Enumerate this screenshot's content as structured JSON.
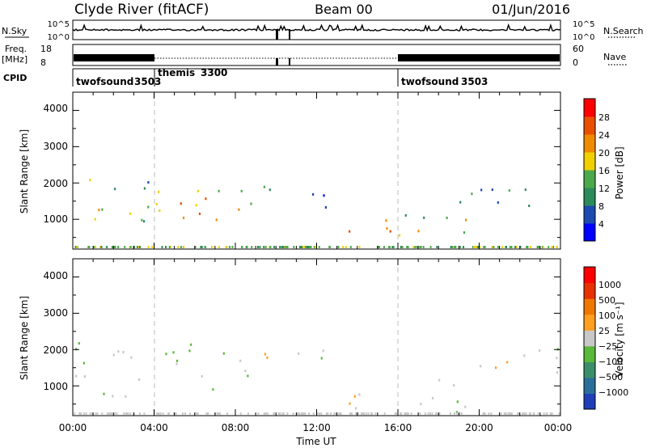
{
  "header": {
    "station": "Clyde River (fitACF)",
    "beam": "Beam 00",
    "date": "01/Jun/2016"
  },
  "noise_panel": {
    "left_label": "N.Sky",
    "right_label": "N.Search",
    "left_ticks": [
      "10^5",
      "10^0"
    ],
    "right_ticks": [
      "10^5",
      "10^0"
    ]
  },
  "freq_panel": {
    "left_label": "Freq.",
    "left_unit": "[MHz]",
    "right_label": "Nave",
    "left_ticks": [
      "18",
      "8"
    ],
    "right_ticks": [
      "60",
      "0"
    ]
  },
  "cpid_panel": {
    "label": "CPID",
    "segments": [
      {
        "name": "twofsound",
        "id": "3503",
        "start_h": 0,
        "end_h": 4
      },
      {
        "name": "themis",
        "id": "3300",
        "start_h": 4,
        "end_h": 16
      },
      {
        "name": "twofsound",
        "id": "3503",
        "start_h": 16,
        "end_h": 24
      }
    ]
  },
  "x_axis": {
    "label": "Time UT",
    "ticks": [
      "00:00",
      "04:00",
      "08:00",
      "12:00",
      "16:00",
      "20:00",
      "00:00"
    ]
  },
  "power_panel": {
    "ylabel": "Slant Range [km]",
    "yticks": [
      "4000",
      "3000",
      "2000",
      "1000"
    ],
    "colorbar_label": "Power [dB]",
    "colorbar_ticks": [
      "28",
      "24",
      "20",
      "16",
      "12",
      "8",
      "4"
    ],
    "colors": [
      "#0000ff",
      "#1c4ab0",
      "#2d8a5a",
      "#4ca94a",
      "#f0d000",
      "#f08a00",
      "#e85000",
      "#ff0000"
    ]
  },
  "velocity_panel": {
    "ylabel": "Slant Range [km]",
    "yticks": [
      "4000",
      "3000",
      "2000",
      "1000"
    ],
    "colorbar_label": "Velocity [m s⁻¹]",
    "colorbar_ticks": [
      "1000",
      "500",
      "100",
      "25",
      "−25",
      "−100",
      "−500",
      "−1000"
    ],
    "colors": [
      "#1f3fb8",
      "#2a6f9a",
      "#3a8f6a",
      "#5ab83a",
      "#c8c8c8",
      "#ff9f1f",
      "#f07800",
      "#e83000",
      "#ff0000"
    ]
  },
  "chart_data": {
    "type": "heatmap",
    "x_range_hours": [
      0,
      24
    ],
    "y_range_km": [
      180,
      4500
    ],
    "power_dB_range": [
      0,
      32
    ],
    "velocity_range_m_s": [
      -1000,
      1000
    ],
    "scatter_regions": [
      {
        "t": [
          0.1,
          4.2
        ],
        "r": [
          700,
          2300
        ],
        "power": 14,
        "velocity": -60
      },
      {
        "t": [
          4.2,
          9.0
        ],
        "r": [
          900,
          2200
        ],
        "power": 20,
        "velocity": -180
      },
      {
        "t": [
          8.0,
          10.5
        ],
        "r": [
          1700,
          2200
        ],
        "power": 12,
        "velocity": 20
      },
      {
        "t": [
          10.5,
          12.5
        ],
        "r": [
          1200,
          2000
        ],
        "power": 6,
        "velocity": 10
      },
      {
        "t": [
          13.0,
          16.0
        ],
        "r": [
          300,
          1000
        ],
        "power": 24,
        "velocity": 150
      },
      {
        "t": [
          16.0,
          20.0
        ],
        "r": [
          300,
          1200
        ],
        "power": 16,
        "velocity": -80
      },
      {
        "t": [
          19.0,
          24.0
        ],
        "r": [
          1300,
          2100
        ],
        "power": 8,
        "velocity": 0
      }
    ]
  }
}
